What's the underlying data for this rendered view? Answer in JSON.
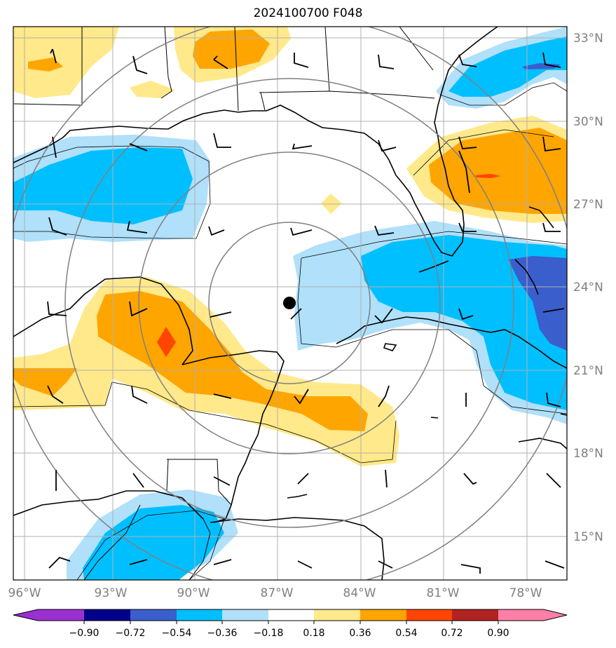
{
  "title": "2024100700 F048",
  "map": {
    "lat_labels": [
      "33°N",
      "30°N",
      "27°N",
      "24°N",
      "21°N",
      "18°N",
      "15°N"
    ],
    "lon_labels": [
      "96°W",
      "93°W",
      "90°W",
      "87°W",
      "84°W",
      "81°W",
      "78°W"
    ],
    "center_marker": {
      "lat": 23.4,
      "lon": -86.6
    }
  },
  "colorbar": {
    "ticks": [
      "−0.90",
      "−0.72",
      "−0.54",
      "−0.36",
      "−0.18",
      "0.18",
      "0.36",
      "0.54",
      "0.72",
      "0.90"
    ],
    "colors": [
      "#9b30d0",
      "#00008b",
      "#3a5fcd",
      "#00bfff",
      "#b0e0fa",
      "#ffffff",
      "#ffe98a",
      "#ffa500",
      "#ff4500",
      "#b22222",
      "#ff7fa8"
    ]
  },
  "fill_colors": {
    "light_yellow": "#ffe98a",
    "orange": "#ffa500",
    "red_orange": "#ff4500",
    "light_blue": "#b0e0fa",
    "deep_sky_blue": "#00bfff",
    "royal_blue": "#3a5fcd"
  }
}
